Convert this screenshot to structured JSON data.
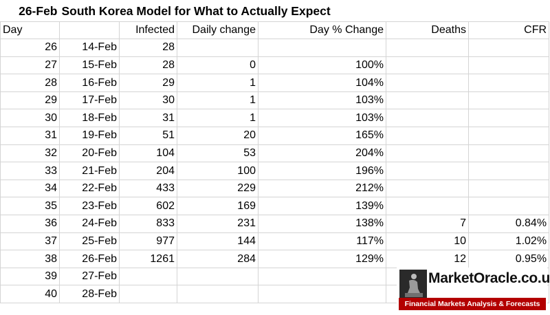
{
  "title": {
    "date": "26-Feb",
    "text": "South Korea Model for What to Actually Expect"
  },
  "headers": {
    "day": "Day",
    "date": "",
    "infected": "Infected",
    "daily_change": "Daily change",
    "day_pct_change": "Day % Change",
    "deaths": "Deaths",
    "cfr": "CFR"
  },
  "rows": [
    {
      "day": "26",
      "date": "14-Feb",
      "infected": "28",
      "daily_change": "",
      "day_pct_change": "",
      "deaths": "",
      "cfr": ""
    },
    {
      "day": "27",
      "date": "15-Feb",
      "infected": "28",
      "daily_change": "0",
      "day_pct_change": "100%",
      "deaths": "",
      "cfr": ""
    },
    {
      "day": "28",
      "date": "16-Feb",
      "infected": "29",
      "daily_change": "1",
      "day_pct_change": "104%",
      "deaths": "",
      "cfr": ""
    },
    {
      "day": "29",
      "date": "17-Feb",
      "infected": "30",
      "daily_change": "1",
      "day_pct_change": "103%",
      "deaths": "",
      "cfr": ""
    },
    {
      "day": "30",
      "date": "18-Feb",
      "infected": "31",
      "daily_change": "1",
      "day_pct_change": "103%",
      "deaths": "",
      "cfr": ""
    },
    {
      "day": "31",
      "date": "19-Feb",
      "infected": "51",
      "daily_change": "20",
      "day_pct_change": "165%",
      "deaths": "",
      "cfr": ""
    },
    {
      "day": "32",
      "date": "20-Feb",
      "infected": "104",
      "daily_change": "53",
      "day_pct_change": "204%",
      "deaths": "",
      "cfr": ""
    },
    {
      "day": "33",
      "date": "21-Feb",
      "infected": "204",
      "daily_change": "100",
      "day_pct_change": "196%",
      "deaths": "",
      "cfr": ""
    },
    {
      "day": "34",
      "date": "22-Feb",
      "infected": "433",
      "daily_change": "229",
      "day_pct_change": "212%",
      "deaths": "",
      "cfr": ""
    },
    {
      "day": "35",
      "date": "23-Feb",
      "infected": "602",
      "daily_change": "169",
      "day_pct_change": "139%",
      "deaths": "",
      "cfr": ""
    },
    {
      "day": "36",
      "date": "24-Feb",
      "infected": "833",
      "daily_change": "231",
      "day_pct_change": "138%",
      "deaths": "7",
      "cfr": "0.84%"
    },
    {
      "day": "37",
      "date": "25-Feb",
      "infected": "977",
      "daily_change": "144",
      "day_pct_change": "117%",
      "deaths": "10",
      "cfr": "1.02%"
    },
    {
      "day": "38",
      "date": "26-Feb",
      "infected": "1261",
      "daily_change": "284",
      "day_pct_change": "129%",
      "deaths": "12",
      "cfr": "0.95%"
    },
    {
      "day": "39",
      "date": "27-Feb",
      "infected": "",
      "daily_change": "",
      "day_pct_change": "",
      "deaths": "",
      "cfr": ""
    },
    {
      "day": "40",
      "date": "28-Feb",
      "infected": "",
      "daily_change": "",
      "day_pct_change": "",
      "deaths": "",
      "cfr": ""
    }
  ],
  "watermark": {
    "brand": "MarketOracle.co.uk",
    "tagline": "Financial Markets Analysis & Forecasts",
    "accent_color": "#b30000"
  }
}
